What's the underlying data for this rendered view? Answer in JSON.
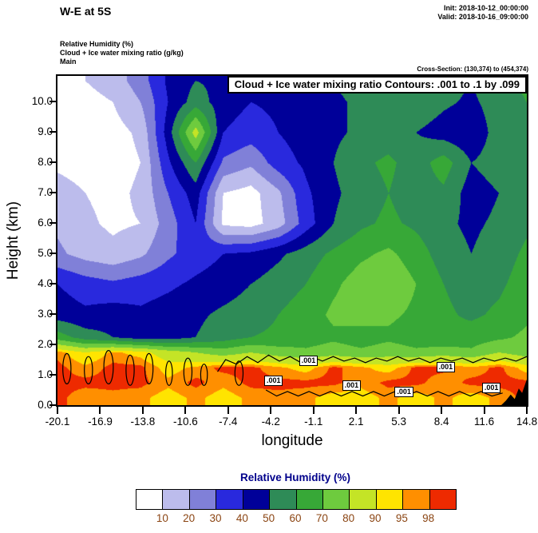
{
  "header": {
    "title": "W-E at 5S",
    "init": "Init: 2018-10-12_00:00:00",
    "valid": "Valid: 2018-10-16_09:00:00",
    "field1": "Relative Humidity   (%)",
    "field2": "Cloud + Ice water mixing ratio   (g/kg)",
    "field3": "Main",
    "cross_section": "Cross-Section: (130,374) to (454,374)"
  },
  "plot": {
    "contour_box_label": "Cloud + Ice water mixing ratio Contours: .001 to .1 by .099",
    "ylabel": "Height (km)",
    "xlabel": "longitude",
    "yticks": [
      "10.0",
      "9.0",
      "8.0",
      "7.0",
      "6.0",
      "5.0",
      "4.0",
      "3.0",
      "2.0",
      "1.0",
      "0.0"
    ],
    "xticks": [
      "-20.1",
      "-16.9",
      "-13.8",
      "-10.6",
      "-7.4",
      "-4.2",
      "-1.1",
      "2.1",
      "5.3",
      "8.4",
      "11.6",
      "14.8"
    ]
  },
  "colorbar": {
    "title": "Relative Humidity  (%)",
    "title_color": "#00008b",
    "label_color": "#8b4513",
    "labels": [
      "10",
      "20",
      "30",
      "40",
      "50",
      "60",
      "70",
      "80",
      "90",
      "95",
      "98"
    ]
  },
  "chart_data": {
    "type": "heatmap",
    "title": "W-E at 5S",
    "xlabel": "longitude",
    "ylabel": "Height (km)",
    "xlim": [
      -20.1,
      14.8
    ],
    "ylim": [
      0,
      10.85
    ],
    "fill_field": "Relative Humidity (%)",
    "overlay_field": "Cloud + Ice water mixing ratio (g/kg)",
    "overlay_contour_spec": ".001 to .1 by .099",
    "rh_levels": [
      10,
      20,
      30,
      40,
      50,
      60,
      70,
      80,
      90,
      95,
      98
    ],
    "rh_colors": [
      "#ffffff",
      "#bcbcec",
      "#8080d8",
      "#2929dd",
      "#000099",
      "#2e8b57",
      "#37a837",
      "#6ecb3e",
      "#c4e426",
      "#ffe400",
      "#ff8f00",
      "#ee2a00"
    ],
    "grid": {
      "lons": [
        -20.1,
        -18.05,
        -16.0,
        -13.95,
        -11.89,
        -9.84,
        -7.79,
        -5.73,
        -3.68,
        -1.63,
        0.43,
        2.48,
        4.53,
        6.59,
        8.64,
        10.69,
        12.75,
        14.8
      ],
      "heights_km": [
        0.25,
        0.75,
        1.25,
        1.75,
        2.25,
        3,
        4,
        5,
        6,
        7,
        8,
        9,
        10,
        10.7
      ],
      "rh_values": [
        [
          99,
          96,
          97,
          96,
          93,
          96,
          93,
          96,
          97,
          96,
          93,
          93,
          96,
          93,
          96,
          93,
          96,
          99
        ],
        [
          99,
          99,
          99,
          99,
          96,
          99,
          96,
          99,
          99,
          99,
          99,
          96,
          99,
          99,
          96,
          99,
          99,
          99
        ],
        [
          99,
          96,
          99,
          99,
          93,
          96,
          99,
          99,
          96,
          93,
          99,
          96,
          93,
          99,
          99,
          96,
          99,
          93
        ],
        [
          97,
          90,
          96,
          93,
          85,
          80,
          75,
          80,
          75,
          72,
          75,
          72,
          75,
          72,
          75,
          72,
          80,
          75
        ],
        [
          65,
          55,
          50,
          45,
          45,
          50,
          55,
          60,
          62,
          65,
          68,
          65,
          68,
          65,
          62,
          65,
          68,
          72
        ],
        [
          45,
          42,
          45,
          42,
          45,
          48,
          52,
          55,
          60,
          65,
          72,
          75,
          72,
          68,
          62,
          58,
          62,
          68
        ],
        [
          40,
          35,
          32,
          35,
          38,
          42,
          45,
          50,
          55,
          60,
          68,
          75,
          78,
          70,
          60,
          55,
          58,
          65
        ],
        [
          22,
          16,
          13,
          18,
          28,
          35,
          40,
          42,
          48,
          55,
          62,
          68,
          72,
          65,
          55,
          50,
          55,
          62
        ],
        [
          18,
          12,
          8,
          10,
          25,
          40,
          8,
          6,
          15,
          35,
          50,
          58,
          62,
          58,
          52,
          48,
          52,
          58
        ],
        [
          14,
          10,
          7,
          12,
          30,
          45,
          10,
          6,
          18,
          38,
          48,
          55,
          60,
          55,
          58,
          45,
          50,
          55
        ],
        [
          8,
          6,
          5,
          10,
          38,
          60,
          28,
          22,
          35,
          42,
          50,
          58,
          62,
          55,
          65,
          50,
          55,
          60
        ],
        [
          5,
          5,
          6,
          12,
          45,
          85,
          40,
          35,
          40,
          45,
          48,
          52,
          55,
          50,
          45,
          42,
          55,
          58
        ],
        [
          5,
          6,
          10,
          20,
          40,
          55,
          45,
          40,
          42,
          45,
          48,
          52,
          55,
          58,
          52,
          48,
          55,
          60
        ],
        [
          8,
          10,
          15,
          25,
          42,
          50,
          48,
          45,
          45,
          48,
          50,
          55,
          58,
          60,
          55,
          50,
          58,
          62
        ]
      ]
    },
    "contour_labels": [
      {
        "lon": -1.3,
        "km": 1.45,
        "text": ".001"
      },
      {
        "lon": -3.9,
        "km": 0.8,
        "text": ".001"
      },
      {
        "lon": 1.9,
        "km": 0.62,
        "text": ".001"
      },
      {
        "lon": 5.8,
        "km": 0.42,
        "text": ".001"
      },
      {
        "lon": 8.9,
        "km": 1.25,
        "text": ".001"
      },
      {
        "lon": 12.3,
        "km": 0.55,
        "text": ".001"
      }
    ],
    "cloud_contour_polylines": [
      [
        [
          -8.2,
          1.1
        ],
        [
          -7.6,
          1.5
        ],
        [
          -6.8,
          1.35
        ],
        [
          -6.0,
          1.6
        ],
        [
          -5.2,
          1.4
        ],
        [
          -4.4,
          1.65
        ],
        [
          -3.6,
          1.45
        ],
        [
          -2.8,
          1.6
        ],
        [
          -2.0,
          1.4
        ],
        [
          -1.2,
          1.6
        ],
        [
          -0.4,
          1.45
        ],
        [
          0.4,
          1.6
        ],
        [
          1.2,
          1.45
        ],
        [
          2.0,
          1.55
        ],
        [
          2.8,
          1.4
        ],
        [
          3.6,
          1.55
        ],
        [
          4.4,
          1.45
        ],
        [
          5.2,
          1.6
        ],
        [
          6.0,
          1.45
        ],
        [
          6.8,
          1.55
        ],
        [
          7.6,
          1.4
        ],
        [
          8.4,
          1.55
        ],
        [
          9.2,
          1.45
        ],
        [
          10.0,
          1.55
        ],
        [
          10.8,
          1.4
        ],
        [
          11.6,
          1.55
        ],
        [
          12.4,
          1.45
        ],
        [
          13.2,
          1.55
        ],
        [
          14.0,
          1.45
        ],
        [
          14.8,
          1.6
        ]
      ],
      [
        [
          -4.6,
          0.5
        ],
        [
          -3.8,
          0.3
        ],
        [
          -3.0,
          0.45
        ],
        [
          -2.2,
          0.3
        ],
        [
          -1.4,
          0.45
        ],
        [
          -0.6,
          0.3
        ],
        [
          0.2,
          0.45
        ],
        [
          1.0,
          0.3
        ],
        [
          1.8,
          0.45
        ],
        [
          2.6,
          0.3
        ],
        [
          3.4,
          0.45
        ],
        [
          4.2,
          0.3
        ],
        [
          5.0,
          0.45
        ],
        [
          5.8,
          0.3
        ],
        [
          6.6,
          0.45
        ],
        [
          7.4,
          0.3
        ],
        [
          8.2,
          0.45
        ],
        [
          9.0,
          0.3
        ],
        [
          9.8,
          0.45
        ],
        [
          10.6,
          0.3
        ],
        [
          11.4,
          0.45
        ],
        [
          12.2,
          0.3
        ],
        [
          13.0,
          0.4
        ]
      ]
    ],
    "cloud_contour_loops": [
      [
        -19.4,
        1.2,
        0.3,
        0.5
      ],
      [
        -17.8,
        1.15,
        0.3,
        0.45
      ],
      [
        -16.3,
        1.25,
        0.35,
        0.55
      ],
      [
        -14.7,
        1.15,
        0.3,
        0.5
      ],
      [
        -13.3,
        1.2,
        0.3,
        0.5
      ],
      [
        -11.8,
        1.05,
        0.25,
        0.4
      ],
      [
        -10.4,
        1.1,
        0.3,
        0.45
      ],
      [
        -9.2,
        1.0,
        0.25,
        0.35
      ],
      [
        -6.6,
        1.05,
        0.3,
        0.4
      ]
    ],
    "terrain": [
      [
        12.9,
        0
      ],
      [
        13.25,
        0.15
      ],
      [
        13.6,
        0.35
      ],
      [
        13.9,
        0.2
      ],
      [
        14.2,
        0.55
      ],
      [
        14.45,
        0.4
      ],
      [
        14.8,
        0.85
      ],
      [
        14.8,
        0
      ]
    ]
  }
}
